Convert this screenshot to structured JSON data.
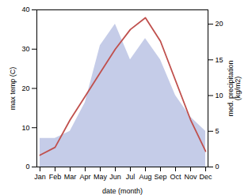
{
  "chart_data": {
    "type": "line",
    "xlabel": "date (month)",
    "ylabel": "max temp (C)",
    "y2label": "med. precipitation\n(kg/m2)",
    "categories": [
      "Jan",
      "Feb",
      "Mar",
      "Apr",
      "May",
      "Jun",
      "Jul",
      "Aug",
      "Sep",
      "Oct",
      "Nov",
      "Dec"
    ],
    "series": [
      {
        "type": "area",
        "axis": "y2",
        "color": "#c5cce8",
        "values": [
          4,
          4,
          5,
          9,
          17,
          20,
          15,
          18,
          15,
          10,
          7,
          5
        ]
      },
      {
        "type": "line",
        "color": "#c0504d",
        "values": [
          3,
          5,
          12,
          18,
          24,
          30,
          35,
          38,
          32,
          22,
          12,
          4
        ]
      }
    ],
    "ylim": [
      0,
      40
    ],
    "yticks": [
      0,
      10,
      20,
      30,
      40
    ],
    "y2lim": [
      0,
      22
    ],
    "y2ticks": [
      0,
      5,
      10,
      15,
      20
    ]
  }
}
